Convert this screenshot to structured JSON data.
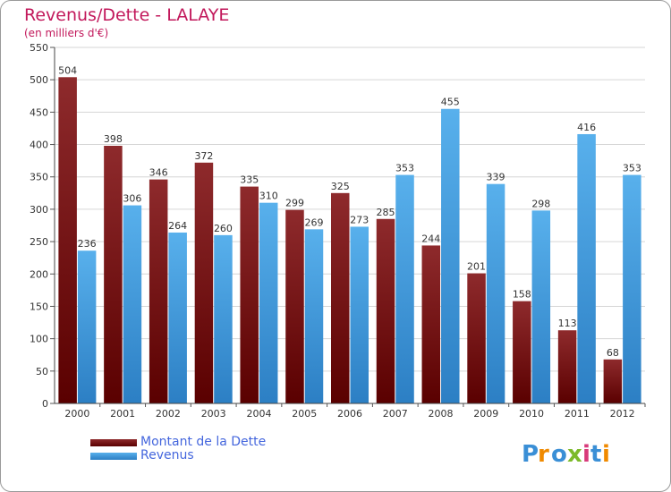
{
  "header": {
    "title": "Revenus/Dette - LALAYE",
    "subtitle": "(en milliers d'€)"
  },
  "legend": {
    "items": [
      {
        "label": "Montant de la Dette",
        "color": "#8b1a1a"
      },
      {
        "label": "Revenus",
        "color": "#4da6e8"
      }
    ]
  },
  "logo": {
    "text": "Proxiti"
  },
  "chart_data": {
    "type": "bar",
    "title": "Revenus/Dette - LALAYE",
    "subtitle": "(en milliers d'€)",
    "categories": [
      "2000",
      "2001",
      "2002",
      "2003",
      "2004",
      "2005",
      "2006",
      "2007",
      "2008",
      "2009",
      "2010",
      "2011",
      "2012"
    ],
    "series": [
      {
        "name": "Montant de la Dette",
        "color": "#8b1a1a",
        "values": [
          504,
          398,
          346,
          372,
          335,
          299,
          325,
          285,
          244,
          201,
          158,
          113,
          68
        ]
      },
      {
        "name": "Revenus",
        "color": "#4da6e8",
        "values": [
          236,
          306,
          264,
          260,
          310,
          269,
          273,
          353,
          455,
          339,
          298,
          416,
          353
        ]
      }
    ],
    "ylim": [
      0,
      550
    ],
    "yticks": [
      0,
      50,
      100,
      150,
      200,
      250,
      300,
      350,
      400,
      450,
      500,
      550
    ],
    "grid": true,
    "legend_position": "bottom-left"
  }
}
